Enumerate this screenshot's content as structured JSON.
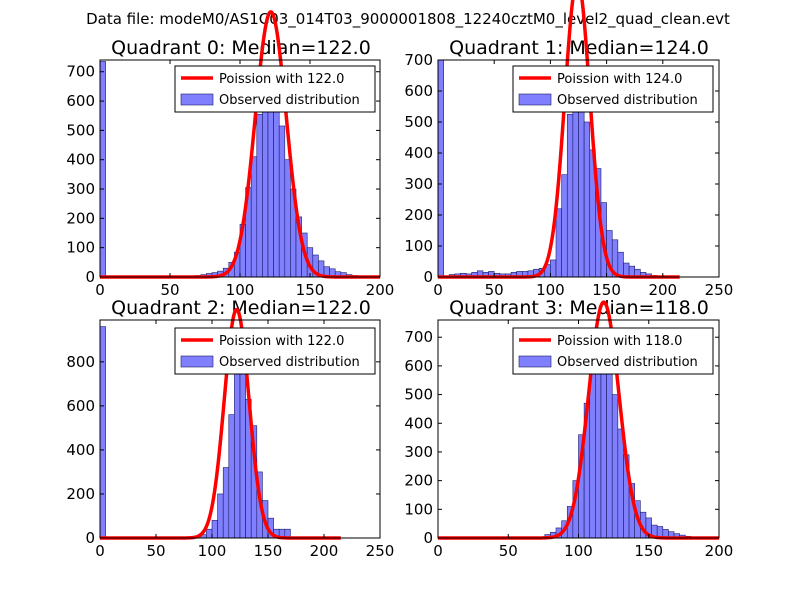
{
  "figure_title": "Data file: modeM0/AS1C03_014T03_9000001808_12240cztM0_level2_quad_clean.evt",
  "colors": {
    "bar_fill": "#8080ff",
    "bar_edge": "#1a1a66",
    "fit_line": "#ff0000"
  },
  "chart_data": [
    {
      "type": "bar",
      "title": "Quadrant 0: Median=122.0",
      "median": 122.0,
      "xlim": [
        0,
        200
      ],
      "ylim": [
        0,
        740
      ],
      "xticks": [
        "0",
        "50",
        "100",
        "150",
        "200"
      ],
      "yticks": [
        "0",
        "100",
        "200",
        "300",
        "400",
        "500",
        "600",
        "700"
      ],
      "xtick_values": [
        0,
        50,
        100,
        150,
        200
      ],
      "ytick_values": [
        0,
        100,
        200,
        300,
        400,
        500,
        600,
        700
      ],
      "legend": {
        "fit": "Poission with 122.0",
        "observed": "Observed distribution",
        "position": "top-right"
      },
      "bin_width": 4,
      "bins": [
        [
          0,
          735
        ],
        [
          68,
          5
        ],
        [
          72,
          8
        ],
        [
          76,
          12
        ],
        [
          80,
          15
        ],
        [
          84,
          20
        ],
        [
          88,
          30
        ],
        [
          92,
          50
        ],
        [
          96,
          85
        ],
        [
          100,
          180
        ],
        [
          104,
          305
        ],
        [
          108,
          410
        ],
        [
          112,
          555
        ],
        [
          116,
          650
        ],
        [
          120,
          690
        ],
        [
          124,
          600
        ],
        [
          128,
          515
        ],
        [
          132,
          400
        ],
        [
          136,
          300
        ],
        [
          140,
          205
        ],
        [
          144,
          150
        ],
        [
          148,
          100
        ],
        [
          152,
          75
        ],
        [
          156,
          55
        ],
        [
          160,
          35
        ],
        [
          164,
          28
        ],
        [
          168,
          18
        ],
        [
          172,
          15
        ],
        [
          176,
          8
        ],
        [
          180,
          5
        ]
      ]
    },
    {
      "type": "bar",
      "title": "Quadrant 1: Median=124.0",
      "median": 124.0,
      "xlim": [
        0,
        250
      ],
      "ylim": [
        0,
        700
      ],
      "xticks": [
        "0",
        "50",
        "100",
        "150",
        "200",
        "250"
      ],
      "yticks": [
        "0",
        "100",
        "200",
        "300",
        "400",
        "500",
        "600",
        "700"
      ],
      "xtick_values": [
        0,
        50,
        100,
        150,
        200,
        250
      ],
      "ytick_values": [
        0,
        100,
        200,
        300,
        400,
        500,
        600,
        700
      ],
      "legend": {
        "fit": "Poission with 124.0",
        "observed": "Observed distribution",
        "position": "top-right"
      },
      "bin_width": 5,
      "bins": [
        [
          0,
          700
        ],
        [
          10,
          8
        ],
        [
          15,
          10
        ],
        [
          20,
          12
        ],
        [
          25,
          10
        ],
        [
          30,
          15
        ],
        [
          35,
          20
        ],
        [
          40,
          15
        ],
        [
          45,
          18
        ],
        [
          50,
          12
        ],
        [
          55,
          10
        ],
        [
          60,
          10
        ],
        [
          65,
          15
        ],
        [
          70,
          18
        ],
        [
          75,
          18
        ],
        [
          80,
          20
        ],
        [
          85,
          25
        ],
        [
          90,
          28
        ],
        [
          95,
          40
        ],
        [
          100,
          55
        ],
        [
          105,
          220
        ],
        [
          110,
          330
        ],
        [
          115,
          525
        ],
        [
          120,
          580
        ],
        [
          125,
          650
        ],
        [
          130,
          500
        ],
        [
          135,
          410
        ],
        [
          140,
          350
        ],
        [
          145,
          240
        ],
        [
          150,
          150
        ],
        [
          155,
          120
        ],
        [
          160,
          80
        ],
        [
          165,
          45
        ],
        [
          170,
          35
        ],
        [
          175,
          25
        ],
        [
          180,
          15
        ],
        [
          185,
          10
        ],
        [
          190,
          5
        ]
      ]
    },
    {
      "type": "bar",
      "title": "Quadrant 2: Median=122.0",
      "median": 122.0,
      "xlim": [
        0,
        250
      ],
      "ylim": [
        0,
        990
      ],
      "xticks": [
        "0",
        "50",
        "100",
        "150",
        "200",
        "250"
      ],
      "yticks": [
        "0",
        "200",
        "400",
        "600",
        "800"
      ],
      "xtick_values": [
        0,
        50,
        100,
        150,
        200,
        250
      ],
      "ytick_values": [
        0,
        200,
        400,
        600,
        800
      ],
      "legend": {
        "fit": "Poission with 122.0",
        "observed": "Observed distribution",
        "position": "top-right"
      },
      "bin_width": 5,
      "bins": [
        [
          0,
          960
        ],
        [
          90,
          15
        ],
        [
          95,
          40
        ],
        [
          100,
          80
        ],
        [
          105,
          200
        ],
        [
          110,
          320
        ],
        [
          115,
          560
        ],
        [
          120,
          820
        ],
        [
          125,
          890
        ],
        [
          130,
          630
        ],
        [
          135,
          510
        ],
        [
          140,
          300
        ],
        [
          145,
          170
        ],
        [
          150,
          90
        ],
        [
          155,
          40
        ],
        [
          160,
          40
        ],
        [
          165,
          40
        ],
        [
          170,
          5
        ],
        [
          175,
          5
        ],
        [
          180,
          5
        ],
        [
          185,
          5
        ],
        [
          190,
          5
        ],
        [
          195,
          5
        ],
        [
          200,
          5
        ],
        [
          205,
          5
        ]
      ]
    },
    {
      "type": "bar",
      "title": "Quadrant 3: Median=118.0",
      "median": 118.0,
      "xlim": [
        0,
        200
      ],
      "ylim": [
        0,
        760
      ],
      "xticks": [
        "0",
        "50",
        "100",
        "150",
        "200"
      ],
      "yticks": [
        "0",
        "100",
        "200",
        "300",
        "400",
        "500",
        "600",
        "700"
      ],
      "xtick_values": [
        0,
        50,
        100,
        150,
        200
      ],
      "ytick_values": [
        0,
        100,
        200,
        300,
        400,
        500,
        600,
        700
      ],
      "legend": {
        "fit": "Poission with 118.0",
        "observed": "Observed distribution",
        "position": "top-right"
      },
      "bin_width": 4,
      "bins": [
        [
          76,
          12
        ],
        [
          80,
          20
        ],
        [
          84,
          35
        ],
        [
          88,
          60
        ],
        [
          92,
          110
        ],
        [
          96,
          200
        ],
        [
          100,
          360
        ],
        [
          104,
          470
        ],
        [
          108,
          580
        ],
        [
          112,
          640
        ],
        [
          116,
          690
        ],
        [
          120,
          600
        ],
        [
          124,
          500
        ],
        [
          128,
          380
        ],
        [
          132,
          290
        ],
        [
          136,
          190
        ],
        [
          140,
          130
        ],
        [
          144,
          90
        ],
        [
          148,
          70
        ],
        [
          152,
          45
        ],
        [
          156,
          40
        ],
        [
          160,
          30
        ],
        [
          164,
          22
        ],
        [
          168,
          15
        ],
        [
          172,
          10
        ],
        [
          176,
          6
        ],
        [
          180,
          3
        ]
      ]
    }
  ]
}
